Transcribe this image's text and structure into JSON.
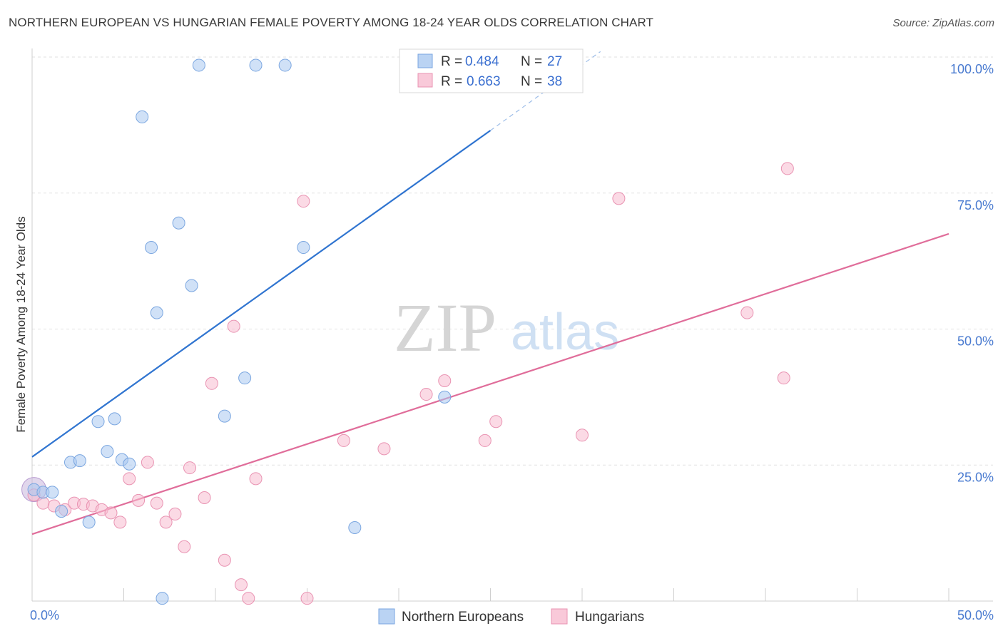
{
  "title": "NORTHERN EUROPEAN VS HUNGARIAN FEMALE POVERTY AMONG 18-24 YEAR OLDS CORRELATION CHART",
  "source": "Source: ZipAtlas.com",
  "watermark": {
    "zip": "ZIP",
    "atlas": "atlas"
  },
  "legend": {
    "rows": [
      {
        "r_label": "R =",
        "r_value": "0.484",
        "n_label": "N =",
        "n_value": "27",
        "color": "#a9c8f0",
        "edge": "#7aa6e0"
      },
      {
        "r_label": "R =",
        "r_value": "0.663",
        "n_label": "N =",
        "n_value": "38",
        "color": "#f7bcd0",
        "edge": "#e993b2"
      }
    ]
  },
  "bottom_legend": [
    {
      "label": "Northern Europeans",
      "color": "#a9c8f0",
      "edge": "#7aa6e0"
    },
    {
      "label": "Hungarians",
      "color": "#f7bcd0",
      "edge": "#e993b2"
    }
  ],
  "chart_data": {
    "type": "scatter",
    "title": "NORTHERN EUROPEAN VS HUNGARIAN FEMALE POVERTY AMONG 18-24 YEAR OLDS CORRELATION CHART",
    "xlabel": "",
    "ylabel": "Female Poverty Among 18-24 Year Olds",
    "xlim": [
      0,
      50
    ],
    "ylim": [
      0,
      100
    ],
    "x_tick_labels": [
      "0.0%",
      "50.0%"
    ],
    "y_ticks": [
      25,
      50,
      75,
      100
    ],
    "y_tick_labels": [
      "25.0%",
      "50.0%",
      "75.0%",
      "100.0%"
    ],
    "grid": true,
    "legend_position": "top-center",
    "series": [
      {
        "name": "Northern Europeans",
        "color": "#a9c8f0",
        "edge": "#7aa6e0",
        "line_color": "#2f74d0",
        "trend": {
          "x0": 0,
          "y0": 26.5,
          "x1": 25,
          "y1": 86.5,
          "dash_x1": 31,
          "dash_y1": 101
        },
        "points": [
          {
            "x": 0.1,
            "y": 20.5
          },
          {
            "x": 0.6,
            "y": 20.0
          },
          {
            "x": 1.1,
            "y": 20.0
          },
          {
            "x": 1.6,
            "y": 16.5
          },
          {
            "x": 2.1,
            "y": 25.5
          },
          {
            "x": 2.6,
            "y": 25.8
          },
          {
            "x": 3.1,
            "y": 14.5
          },
          {
            "x": 3.6,
            "y": 33.0
          },
          {
            "x": 4.1,
            "y": 27.5
          },
          {
            "x": 4.5,
            "y": 33.5
          },
          {
            "x": 4.9,
            "y": 26.0
          },
          {
            "x": 5.3,
            "y": 25.2
          },
          {
            "x": 6.0,
            "y": 89.0
          },
          {
            "x": 6.5,
            "y": 65.0
          },
          {
            "x": 6.8,
            "y": 53.0
          },
          {
            "x": 7.1,
            "y": 0.5
          },
          {
            "x": 8.0,
            "y": 69.5
          },
          {
            "x": 8.7,
            "y": 58.0
          },
          {
            "x": 9.1,
            "y": 98.5
          },
          {
            "x": 10.5,
            "y": 34.0
          },
          {
            "x": 11.6,
            "y": 41.0
          },
          {
            "x": 12.2,
            "y": 98.5
          },
          {
            "x": 13.8,
            "y": 98.5
          },
          {
            "x": 14.8,
            "y": 65.0
          },
          {
            "x": 17.6,
            "y": 13.5
          },
          {
            "x": 22.5,
            "y": 37.5
          },
          {
            "x": 23.0,
            "y": 98.5
          }
        ]
      },
      {
        "name": "Hungarians",
        "color": "#f7bcd0",
        "edge": "#e993b2",
        "line_color": "#e06d9a",
        "trend": {
          "x0": 0,
          "y0": 12.3,
          "x1": 50,
          "y1": 67.5
        },
        "points": [
          {
            "x": 0.1,
            "y": 19.5
          },
          {
            "x": 0.6,
            "y": 18.0
          },
          {
            "x": 1.2,
            "y": 17.5
          },
          {
            "x": 1.8,
            "y": 16.8
          },
          {
            "x": 2.3,
            "y": 18.0
          },
          {
            "x": 2.8,
            "y": 17.8
          },
          {
            "x": 3.3,
            "y": 17.5
          },
          {
            "x": 3.8,
            "y": 16.8
          },
          {
            "x": 4.3,
            "y": 16.2
          },
          {
            "x": 4.8,
            "y": 14.5
          },
          {
            "x": 5.3,
            "y": 22.5
          },
          {
            "x": 5.8,
            "y": 18.5
          },
          {
            "x": 6.3,
            "y": 25.5
          },
          {
            "x": 6.8,
            "y": 18.0
          },
          {
            "x": 7.3,
            "y": 14.5
          },
          {
            "x": 7.8,
            "y": 16.0
          },
          {
            "x": 8.3,
            "y": 10.0
          },
          {
            "x": 8.6,
            "y": 24.5
          },
          {
            "x": 9.4,
            "y": 19.0
          },
          {
            "x": 9.8,
            "y": 40.0
          },
          {
            "x": 10.5,
            "y": 7.5
          },
          {
            "x": 11.0,
            "y": 50.5
          },
          {
            "x": 11.4,
            "y": 3.0
          },
          {
            "x": 11.8,
            "y": 0.5
          },
          {
            "x": 12.2,
            "y": 22.5
          },
          {
            "x": 14.8,
            "y": 73.5
          },
          {
            "x": 15.0,
            "y": 0.5
          },
          {
            "x": 17.0,
            "y": 29.5
          },
          {
            "x": 19.2,
            "y": 28.0
          },
          {
            "x": 21.5,
            "y": 38.0
          },
          {
            "x": 22.5,
            "y": 40.5
          },
          {
            "x": 24.7,
            "y": 29.5
          },
          {
            "x": 25.3,
            "y": 33.0
          },
          {
            "x": 30.0,
            "y": 30.5
          },
          {
            "x": 32.0,
            "y": 74.0
          },
          {
            "x": 39.0,
            "y": 53.0
          },
          {
            "x": 41.0,
            "y": 41.0
          },
          {
            "x": 41.2,
            "y": 79.5
          }
        ]
      }
    ]
  }
}
